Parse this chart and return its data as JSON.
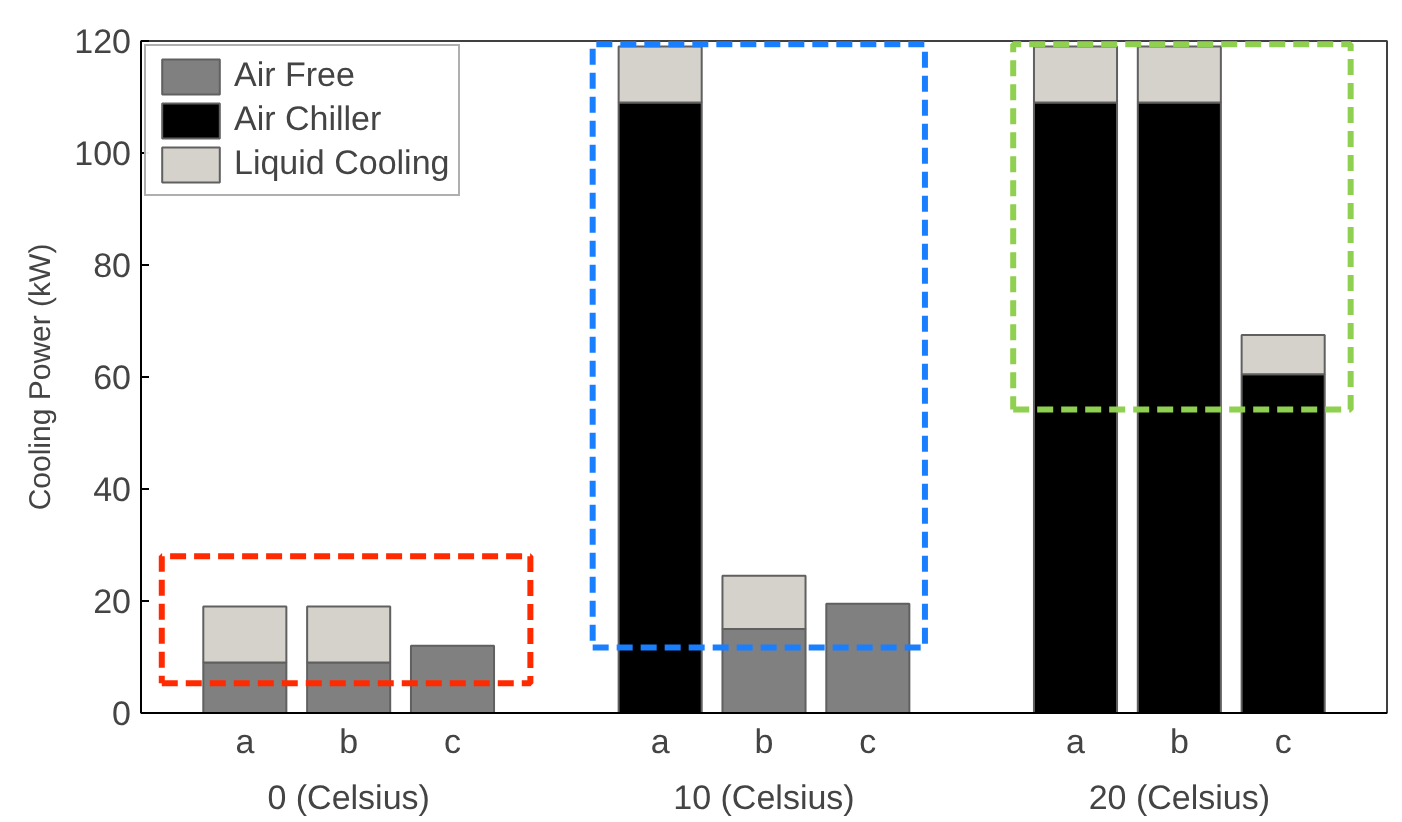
{
  "chart_data": {
    "type": "bar",
    "stacked": true,
    "ylabel": "Cooling Power (kW)",
    "categories": [
      "a",
      "b",
      "c",
      "a",
      "b",
      "c",
      "a",
      "b",
      "c"
    ],
    "annotations": [
      "0 (Celsius)",
      "10 (Celsius)",
      "20 (Celsius)"
    ],
    "series": [
      {
        "name": "Air Free",
        "color": "#808080",
        "values": [
          9,
          9,
          12,
          null,
          15,
          19.5,
          null,
          null,
          null
        ]
      },
      {
        "name": "Air Chiller",
        "color": "#000000",
        "values": [
          null,
          null,
          null,
          109,
          null,
          null,
          109,
          109,
          60.5
        ]
      },
      {
        "name": "Liquid Cooling",
        "color": "#d4d2cb",
        "values": [
          10,
          10,
          null,
          10,
          9.5,
          null,
          10,
          10,
          7
        ]
      }
    ],
    "ylim": [
      0,
      120
    ],
    "yticks": [
      0,
      20,
      40,
      60,
      80,
      100,
      120
    ],
    "legend": "top left"
  }
}
